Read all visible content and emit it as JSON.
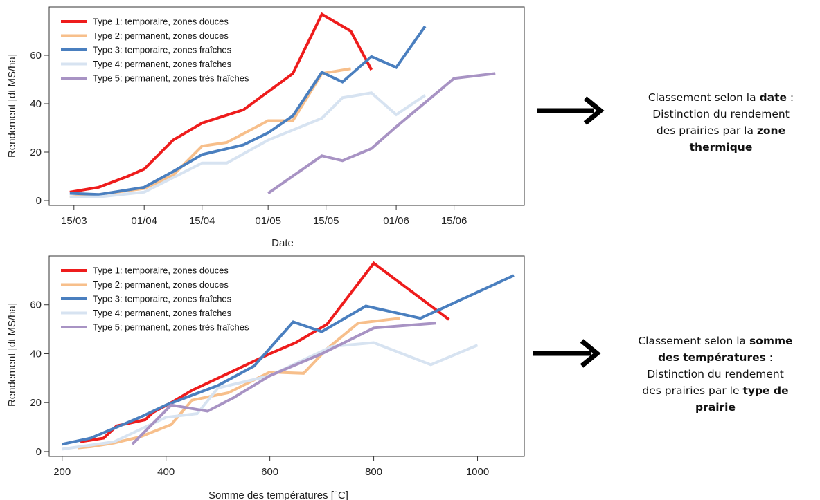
{
  "legend": [
    {
      "label": "Type 1: temporaire, zones douces",
      "color": "#ee1c1c"
    },
    {
      "label": "Type 2: permanent, zones douces",
      "color": "#f7bf8b"
    },
    {
      "label": "Type 3: temporaire, zones fraîches",
      "color": "#4a7fbf"
    },
    {
      "label": "Type 4: permanent, zones fraîches",
      "color": "#d7e3f1"
    },
    {
      "label": "Type 5: permanent, zones très fraîches",
      "color": "#a893c4"
    }
  ],
  "chart_data": [
    {
      "type": "line",
      "xlabel": "Date",
      "ylabel": "Rendement [dt MS/ha]",
      "x_unit": "date (dd/mm)",
      "x_ticks": [
        "15/03",
        "01/04",
        "15/04",
        "01/05",
        "15/05",
        "01/06",
        "15/06"
      ],
      "y_ticks": [
        "0",
        "20",
        "40",
        "60"
      ],
      "xlim": [
        "09/03",
        "02/07"
      ],
      "ylim": [
        -2,
        80
      ],
      "grid": false,
      "legend_position": "top-left",
      "series": [
        {
          "name": "Type 1: temporaire, zones douces",
          "color": "#ee1c1c",
          "points": [
            [
              "14/03",
              3.5
            ],
            [
              "21/03",
              5.5
            ],
            [
              "28/03",
              10
            ],
            [
              "01/04",
              13
            ],
            [
              "08/04",
              25
            ],
            [
              "15/04",
              32
            ],
            [
              "25/04",
              37.5
            ],
            [
              "01/05",
              45
            ],
            [
              "07/05",
              52.5
            ],
            [
              "14/05",
              77
            ],
            [
              "21/05",
              70
            ],
            [
              "26/05",
              54
            ]
          ]
        },
        {
          "name": "Type 2: permanent, zones douces",
          "color": "#f7bf8b",
          "points": [
            [
              "14/03",
              1.5
            ],
            [
              "21/03",
              2.5
            ],
            [
              "01/04",
              5
            ],
            [
              "08/04",
              10.5
            ],
            [
              "15/04",
              22.5
            ],
            [
              "21/04",
              24
            ],
            [
              "01/05",
              33
            ],
            [
              "07/05",
              33
            ],
            [
              "14/05",
              52.5
            ],
            [
              "21/05",
              54.5
            ]
          ]
        },
        {
          "name": "Type 3: temporaire, zones fraîches",
          "color": "#4a7fbf",
          "points": [
            [
              "14/03",
              3
            ],
            [
              "21/03",
              2.5
            ],
            [
              "01/04",
              5.5
            ],
            [
              "08/04",
              12
            ],
            [
              "15/04",
              19
            ],
            [
              "25/04",
              23
            ],
            [
              "01/05",
              28
            ],
            [
              "07/05",
              35
            ],
            [
              "14/05",
              53
            ],
            [
              "19/05",
              49
            ],
            [
              "26/05",
              59.5
            ],
            [
              "01/06",
              55
            ],
            [
              "08/06",
              72
            ]
          ]
        },
        {
          "name": "Type 4: permanent, zones fraîches",
          "color": "#d7e3f1",
          "points": [
            [
              "14/03",
              1.5
            ],
            [
              "21/03",
              1.5
            ],
            [
              "01/04",
              3.5
            ],
            [
              "15/04",
              15.5
            ],
            [
              "21/04",
              15.5
            ],
            [
              "01/05",
              25
            ],
            [
              "14/05",
              34
            ],
            [
              "19/05",
              42.5
            ],
            [
              "26/05",
              44.5
            ],
            [
              "01/06",
              35.5
            ],
            [
              "08/06",
              43.5
            ]
          ]
        },
        {
          "name": "Type 5: permanent, zones très fraîches",
          "color": "#a893c4",
          "points": [
            [
              "01/05",
              3
            ],
            [
              "14/05",
              18.5
            ],
            [
              "19/05",
              16.5
            ],
            [
              "26/05",
              21.5
            ],
            [
              "01/06",
              30.5
            ],
            [
              "15/06",
              50.5
            ],
            [
              "25/06",
              52.5
            ]
          ]
        }
      ]
    },
    {
      "type": "line",
      "xlabel": "Somme des températures [°C]",
      "ylabel": "Rendement [dt MS/ha]",
      "x_ticks": [
        "200",
        "400",
        "600",
        "800",
        "1000"
      ],
      "y_ticks": [
        "0",
        "20",
        "40",
        "60"
      ],
      "xlim": [
        175,
        1090
      ],
      "ylim": [
        -2,
        80
      ],
      "grid": false,
      "legend_position": "top-left",
      "series": [
        {
          "name": "Type 1: temporaire, zones douces",
          "color": "#ee1c1c",
          "points": [
            [
              235,
              4
            ],
            [
              280,
              5.5
            ],
            [
              305,
              10.5
            ],
            [
              360,
              13
            ],
            [
              375,
              16
            ],
            [
              410,
              20
            ],
            [
              450,
              25
            ],
            [
              500,
              30
            ],
            [
              600,
              40
            ],
            [
              650,
              44.5
            ],
            [
              710,
              52
            ],
            [
              800,
              77
            ],
            [
              945,
              54
            ]
          ]
        },
        {
          "name": "Type 2: permanent, zones douces",
          "color": "#f7bf8b",
          "points": [
            [
              230,
              1.5
            ],
            [
              255,
              2
            ],
            [
              300,
              3.5
            ],
            [
              350,
              6
            ],
            [
              410,
              11
            ],
            [
              450,
              21
            ],
            [
              520,
              24
            ],
            [
              600,
              32.5
            ],
            [
              665,
              32
            ],
            [
              710,
              42
            ],
            [
              770,
              52.5
            ],
            [
              850,
              54.5
            ]
          ]
        },
        {
          "name": "Type 3: temporaire, zones fraîches",
          "color": "#4a7fbf",
          "points": [
            [
              200,
              3
            ],
            [
              255,
              5.5
            ],
            [
              300,
              9.5
            ],
            [
              350,
              14
            ],
            [
              400,
              19
            ],
            [
              500,
              27
            ],
            [
              570,
              35
            ],
            [
              645,
              53
            ],
            [
              700,
              49
            ],
            [
              785,
              59.5
            ],
            [
              890,
              54.5
            ],
            [
              1070,
              72
            ]
          ]
        },
        {
          "name": "Type 4: permanent, zones fraîches",
          "color": "#d7e3f1",
          "points": [
            [
              200,
              1
            ],
            [
              300,
              4
            ],
            [
              400,
              14
            ],
            [
              460,
              15.5
            ],
            [
              500,
              26
            ],
            [
              600,
              31
            ],
            [
              720,
              43
            ],
            [
              800,
              44.5
            ],
            [
              910,
              35.5
            ],
            [
              1000,
              43.5
            ]
          ]
        },
        {
          "name": "Type 5: permanent, zones très fraîches",
          "color": "#a893c4",
          "points": [
            [
              335,
              3
            ],
            [
              410,
              19
            ],
            [
              480,
              16.5
            ],
            [
              530,
              22
            ],
            [
              600,
              31
            ],
            [
              700,
              40
            ],
            [
              800,
              50.5
            ],
            [
              920,
              52.5
            ]
          ]
        }
      ]
    }
  ],
  "annotations": [
    {
      "lines": [
        [
          {
            "t": "Classement selon la ",
            "b": false
          },
          {
            "t": "date",
            "b": true
          },
          {
            "t": " :",
            "b": false
          }
        ],
        [
          {
            "t": "Distinction du rendement",
            "b": false
          }
        ],
        [
          {
            "t": "des prairies par la ",
            "b": false
          },
          {
            "t": "zone",
            "b": true
          }
        ],
        [
          {
            "t": "thermique",
            "b": true
          }
        ]
      ]
    },
    {
      "lines": [
        [
          {
            "t": "Classement selon la ",
            "b": false
          },
          {
            "t": "somme",
            "b": true
          }
        ],
        [
          {
            "t": "des températures",
            "b": true
          },
          {
            "t": " :",
            "b": false
          }
        ],
        [
          {
            "t": "Distinction du rendement",
            "b": false
          }
        ],
        [
          {
            "t": "des prairies par le ",
            "b": false
          },
          {
            "t": "type de",
            "b": true
          }
        ],
        [
          {
            "t": "prairie",
            "b": true
          }
        ]
      ]
    }
  ]
}
